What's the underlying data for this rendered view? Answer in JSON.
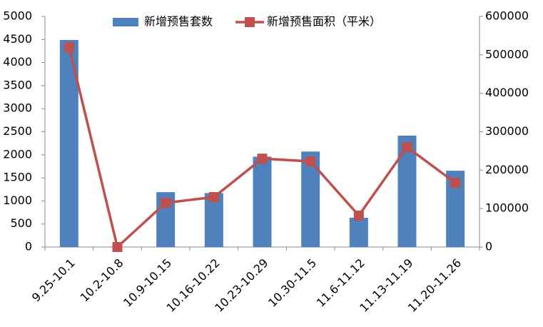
{
  "chart_data": {
    "type": "combo",
    "categories": [
      "9.25-10.1",
      "10.2-10.8",
      "10.9-10.15",
      "10.16-10.22",
      "10.23-10.29",
      "10.30-11.5",
      "11.6-11.12",
      "11.13-11.19",
      "11.20-11.26"
    ],
    "series": [
      {
        "name": "新增预售套数",
        "type": "bar",
        "color": "#4f81bd",
        "values": [
          4490,
          0,
          1190,
          1170,
          1960,
          2070,
          635,
          2415,
          1655
        ]
      },
      {
        "name": "新增预售面积（平米）",
        "type": "line",
        "axis": "y2",
        "color": "#c0504d",
        "values": [
          520000,
          0,
          115000,
          130000,
          230000,
          223000,
          82000,
          260000,
          167000
        ]
      }
    ],
    "ylim": [
      0,
      5000
    ],
    "yticks": [
      0,
      500,
      1000,
      1500,
      2000,
      2500,
      3000,
      3500,
      4000,
      4500,
      5000
    ],
    "y2lim": [
      0,
      600000
    ],
    "y2ticks": [
      0,
      100000,
      200000,
      300000,
      400000,
      500000,
      600000
    ],
    "grid": false,
    "legend": "top"
  }
}
